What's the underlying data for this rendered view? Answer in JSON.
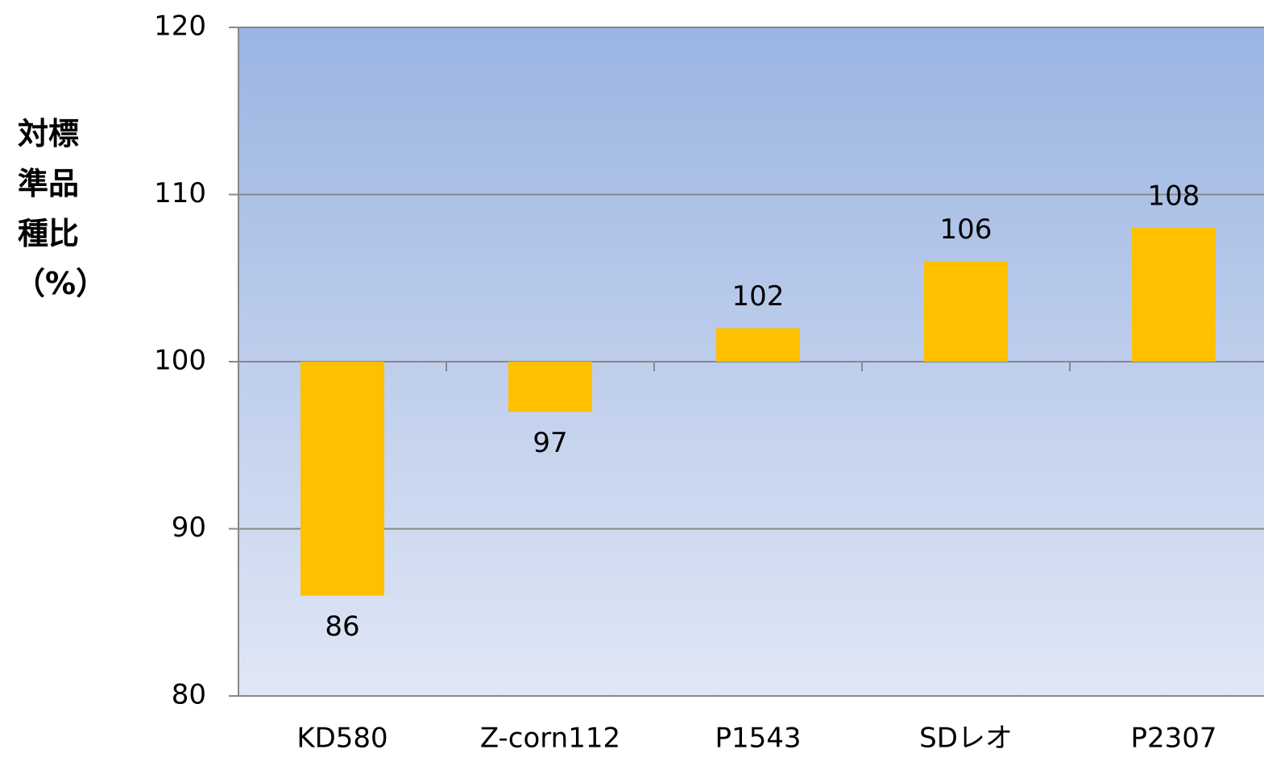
{
  "chart_data": {
    "type": "bar",
    "y_label": "対標準品種比（%）",
    "categories": [
      "KD580",
      "Z-corn112",
      "P1543",
      "SDレオ",
      "P2307"
    ],
    "values": [
      86,
      97,
      102,
      106,
      108
    ],
    "color": "#ffc000",
    "baseline": 100,
    "ylim": [
      80,
      120
    ],
    "yticks": [
      80,
      90,
      100,
      110,
      120
    ],
    "grid": true
  }
}
